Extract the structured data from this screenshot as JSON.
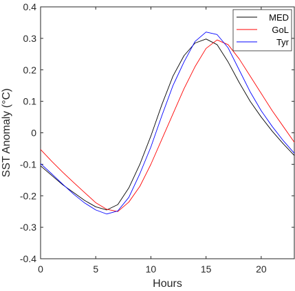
{
  "chart_data": {
    "type": "line",
    "xlabel": "Hours",
    "ylabel": "SST Anomaly (°C)",
    "xlim": [
      0,
      23
    ],
    "ylim": [
      -0.4,
      0.4
    ],
    "xticks": [
      0,
      5,
      10,
      15,
      20
    ],
    "yticks": [
      -0.4,
      -0.3,
      -0.2,
      -0.1,
      0,
      0.1,
      0.2,
      0.3,
      0.4
    ],
    "xtick_labels": [
      "0",
      "5",
      "10",
      "15",
      "20"
    ],
    "ytick_labels": [
      "-0.4",
      "-0.3",
      "-0.2",
      "-0.1",
      "0",
      "0.1",
      "0.2",
      "0.3",
      "0.4"
    ],
    "grid": false,
    "legend_position": "top-right",
    "x": [
      0,
      1,
      2,
      3,
      4,
      5,
      6,
      7,
      8,
      9,
      10,
      11,
      12,
      13,
      14,
      15,
      16,
      17,
      18,
      19,
      20,
      21,
      22,
      23
    ],
    "series": [
      {
        "name": "MED",
        "color": "#000000",
        "values": [
          -0.105,
          -0.135,
          -0.165,
          -0.19,
          -0.215,
          -0.235,
          -0.245,
          -0.228,
          -0.175,
          -0.1,
          -0.01,
          0.09,
          0.18,
          0.245,
          0.285,
          0.298,
          0.28,
          0.225,
          0.16,
          0.1,
          0.05,
          0.005,
          -0.035,
          -0.072
        ]
      },
      {
        "name": "GoL",
        "color": "#ff0000",
        "values": [
          -0.053,
          -0.09,
          -0.125,
          -0.158,
          -0.19,
          -0.222,
          -0.243,
          -0.25,
          -0.22,
          -0.17,
          -0.1,
          -0.02,
          0.06,
          0.14,
          0.21,
          0.268,
          0.295,
          0.28,
          0.235,
          0.18,
          0.125,
          0.07,
          0.02,
          -0.03
        ]
      },
      {
        "name": "Tyr",
        "color": "#0000ff",
        "values": [
          -0.098,
          -0.13,
          -0.163,
          -0.195,
          -0.223,
          -0.245,
          -0.258,
          -0.248,
          -0.205,
          -0.13,
          -0.045,
          0.055,
          0.15,
          0.225,
          0.29,
          0.32,
          0.312,
          0.27,
          0.2,
          0.13,
          0.07,
          0.02,
          -0.025,
          -0.065
        ]
      }
    ]
  }
}
